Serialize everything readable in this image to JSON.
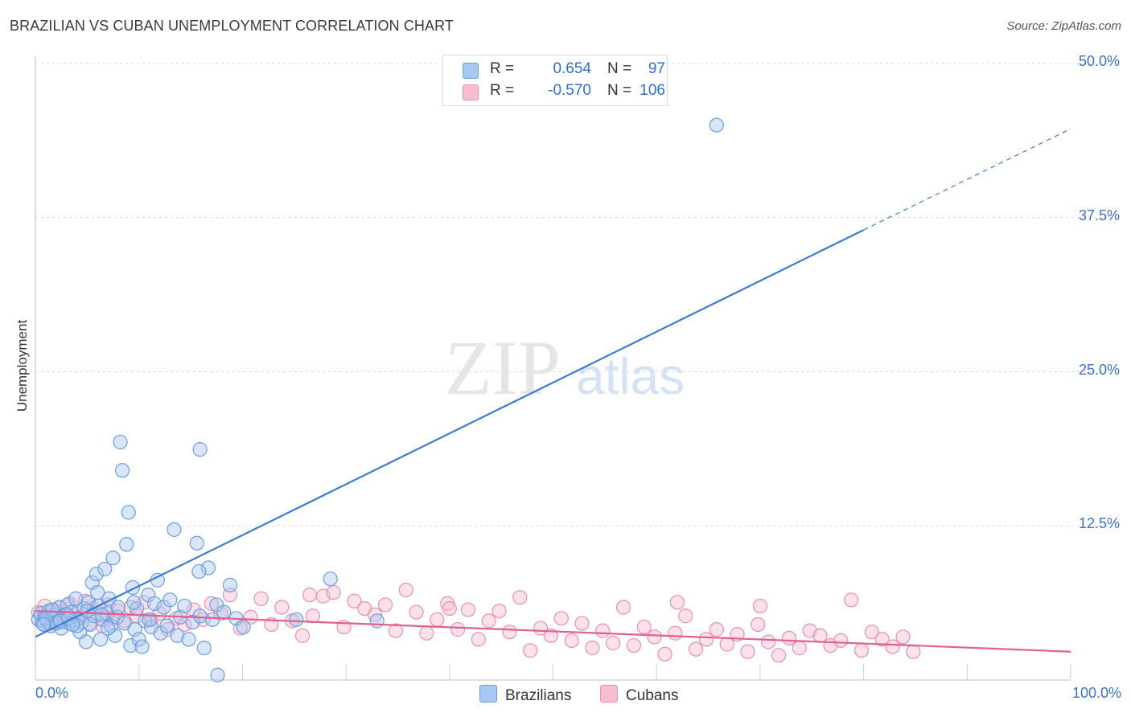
{
  "title": "BRAZILIAN VS CUBAN UNEMPLOYMENT CORRELATION CHART",
  "source": "Source: ZipAtlas.com",
  "watermark": {
    "zip": "ZIP",
    "atlas": "atlas"
  },
  "legend": {
    "rows": [
      {
        "r_label": "R =",
        "r_value": "0.654",
        "n_label": "N =",
        "n_value": "97",
        "color": "#a8c8f0",
        "border": "#6a9ee0"
      },
      {
        "r_label": "R =",
        "r_value": "-0.570",
        "n_label": "N =",
        "n_value": "106",
        "color": "#f8bdd0",
        "border": "#e890ae"
      }
    ]
  },
  "bottom_legend": [
    {
      "label": "Brazilians",
      "color": "#a8c8f0",
      "border": "#6a9ee0"
    },
    {
      "label": "Cubans",
      "color": "#f8bdd0",
      "border": "#e890ae"
    }
  ],
  "chart_data": {
    "type": "scatter",
    "title": "BRAZILIAN VS CUBAN UNEMPLOYMENT CORRELATION CHART",
    "xlabel": "",
    "ylabel": "Unemployment",
    "xlim": [
      0,
      100
    ],
    "ylim": [
      0,
      52
    ],
    "y_ticks": [
      {
        "value": 12.5,
        "label": "12.5%"
      },
      {
        "value": 25,
        "label": "25.0%"
      },
      {
        "value": 37.5,
        "label": "37.5%"
      },
      {
        "value": 50,
        "label": "50.0%"
      }
    ],
    "x_tick_labels": [
      {
        "value": 0,
        "label": "0.0%"
      },
      {
        "value": 100,
        "label": "100.0%"
      }
    ],
    "series": [
      {
        "name": "Brazilians",
        "color": "#3a7bd5",
        "fill": "rgba(168,200,240,0.45)",
        "stroke": "#6a9ee0",
        "R": 0.654,
        "N": 97,
        "trend": {
          "x0": 0,
          "y0": 3.5,
          "x1": 80,
          "y1": 36.5,
          "dash_x1": 100,
          "dash_y1": 44.7
        },
        "points": [
          [
            0.3,
            4.9
          ],
          [
            0.5,
            5.4
          ],
          [
            0.7,
            4.6
          ],
          [
            0.9,
            5.1
          ],
          [
            1.1,
            4.8
          ],
          [
            1.3,
            5.6
          ],
          [
            1.5,
            4.4
          ],
          [
            1.7,
            5.0
          ],
          [
            1.9,
            5.3
          ],
          [
            2.1,
            4.7
          ],
          [
            2.3,
            5.9
          ],
          [
            2.5,
            4.2
          ],
          [
            2.7,
            5.2
          ],
          [
            2.9,
            4.9
          ],
          [
            3.1,
            6.1
          ],
          [
            3.3,
            4.6
          ],
          [
            3.5,
            5.5
          ],
          [
            3.7,
            4.8
          ],
          [
            3.9,
            6.6
          ],
          [
            4.1,
            5.0
          ],
          [
            4.3,
            3.9
          ],
          [
            4.5,
            4.7
          ],
          [
            4.7,
            5.8
          ],
          [
            4.9,
            3.1
          ],
          [
            5.1,
            6.3
          ],
          [
            5.3,
            4.5
          ],
          [
            5.5,
            7.9
          ],
          [
            5.7,
            5.2
          ],
          [
            5.9,
            8.6
          ],
          [
            6.1,
            6.0
          ],
          [
            6.3,
            3.3
          ],
          [
            6.5,
            4.9
          ],
          [
            6.7,
            9.0
          ],
          [
            6.9,
            5.4
          ],
          [
            7.1,
            6.6
          ],
          [
            7.3,
            4.4
          ],
          [
            7.5,
            9.9
          ],
          [
            7.7,
            3.6
          ],
          [
            7.9,
            5.1
          ],
          [
            8.2,
            19.3
          ],
          [
            8.4,
            17.0
          ],
          [
            8.6,
            4.6
          ],
          [
            8.8,
            11.0
          ],
          [
            9.0,
            13.6
          ],
          [
            9.2,
            2.8
          ],
          [
            9.4,
            7.5
          ],
          [
            9.6,
            4.1
          ],
          [
            9.8,
            5.8
          ],
          [
            10.0,
            3.3
          ],
          [
            10.3,
            2.7
          ],
          [
            10.6,
            4.8
          ],
          [
            10.9,
            6.9
          ],
          [
            11.2,
            4.3
          ],
          [
            11.5,
            6.2
          ],
          [
            11.8,
            8.1
          ],
          [
            12.1,
            3.8
          ],
          [
            12.4,
            5.9
          ],
          [
            12.7,
            4.4
          ],
          [
            13.0,
            6.5
          ],
          [
            13.4,
            12.2
          ],
          [
            13.7,
            3.6
          ],
          [
            14.0,
            5.1
          ],
          [
            14.4,
            6.0
          ],
          [
            14.8,
            3.3
          ],
          [
            15.2,
            4.7
          ],
          [
            15.6,
            11.1
          ],
          [
            15.9,
            5.2
          ],
          [
            16.3,
            2.6
          ],
          [
            16.7,
            9.1
          ],
          [
            17.1,
            4.9
          ],
          [
            17.5,
            6.1
          ],
          [
            18.2,
            5.5
          ],
          [
            18.8,
            7.7
          ],
          [
            19.4,
            5.0
          ],
          [
            20.1,
            4.3
          ],
          [
            15.8,
            8.8
          ],
          [
            11.0,
            4.9
          ],
          [
            9.5,
            6.3
          ],
          [
            7.0,
            4.2
          ],
          [
            6.0,
            7.1
          ],
          [
            5.0,
            5.6
          ],
          [
            4.0,
            4.4
          ],
          [
            3.0,
            5.3
          ],
          [
            2.0,
            4.6
          ],
          [
            1.0,
            5.0
          ],
          [
            0.8,
            4.5
          ],
          [
            1.6,
            5.7
          ],
          [
            2.4,
            4.8
          ],
          [
            3.2,
            5.0
          ],
          [
            3.6,
            4.5
          ],
          [
            6.4,
            5.3
          ],
          [
            8.0,
            5.9
          ],
          [
            25.2,
            4.9
          ],
          [
            28.5,
            8.2
          ],
          [
            33.0,
            4.8
          ],
          [
            65.8,
            45.0
          ],
          [
            17.6,
            0.4
          ],
          [
            15.9,
            18.7
          ]
        ]
      },
      {
        "name": "Cubans",
        "color": "#e0608f",
        "fill": "rgba(248,189,208,0.45)",
        "stroke": "#e890ae",
        "R": -0.57,
        "N": 106,
        "trend": {
          "x0": 0,
          "y0": 5.6,
          "x1": 100,
          "y1": 2.3
        },
        "points": [
          [
            0.3,
            5.5
          ],
          [
            0.6,
            4.8
          ],
          [
            0.9,
            6.0
          ],
          [
            1.2,
            5.2
          ],
          [
            1.5,
            4.6
          ],
          [
            1.8,
            5.7
          ],
          [
            2.1,
            5.0
          ],
          [
            2.4,
            5.9
          ],
          [
            2.7,
            4.7
          ],
          [
            3.0,
            5.4
          ],
          [
            3.3,
            6.2
          ],
          [
            3.6,
            4.9
          ],
          [
            4.0,
            5.5
          ],
          [
            4.4,
            5.1
          ],
          [
            4.8,
            6.4
          ],
          [
            5.2,
            4.6
          ],
          [
            5.6,
            5.8
          ],
          [
            6.0,
            5.3
          ],
          [
            6.5,
            4.4
          ],
          [
            7.0,
            6.1
          ],
          [
            7.5,
            5.0
          ],
          [
            8.0,
            5.6
          ],
          [
            8.6,
            4.8
          ],
          [
            9.2,
            5.9
          ],
          [
            9.8,
            5.2
          ],
          [
            10.5,
            6.3
          ],
          [
            11.2,
            4.9
          ],
          [
            12.0,
            5.4
          ],
          [
            12.8,
            4.1
          ],
          [
            13.6,
            5.0
          ],
          [
            14.4,
            4.5
          ],
          [
            15.3,
            5.7
          ],
          [
            16.2,
            4.9
          ],
          [
            17.0,
            6.2
          ],
          [
            17.9,
            5.4
          ],
          [
            18.8,
            6.9
          ],
          [
            19.8,
            4.2
          ],
          [
            20.8,
            5.1
          ],
          [
            21.8,
            6.6
          ],
          [
            22.8,
            4.5
          ],
          [
            23.8,
            5.9
          ],
          [
            24.8,
            4.8
          ],
          [
            25.8,
            3.6
          ],
          [
            26.8,
            5.2
          ],
          [
            27.8,
            6.8
          ],
          [
            28.8,
            7.1
          ],
          [
            29.8,
            4.3
          ],
          [
            30.8,
            6.4
          ],
          [
            31.8,
            5.8
          ],
          [
            32.8,
            5.3
          ],
          [
            33.8,
            6.1
          ],
          [
            34.8,
            4.0
          ],
          [
            35.8,
            7.3
          ],
          [
            36.8,
            5.5
          ],
          [
            37.8,
            3.8
          ],
          [
            38.8,
            4.9
          ],
          [
            39.8,
            6.2
          ],
          [
            40.8,
            4.1
          ],
          [
            41.8,
            5.7
          ],
          [
            42.8,
            3.3
          ],
          [
            43.8,
            4.8
          ],
          [
            44.8,
            5.6
          ],
          [
            45.8,
            3.9
          ],
          [
            46.8,
            6.7
          ],
          [
            47.8,
            2.4
          ],
          [
            48.8,
            4.2
          ],
          [
            49.8,
            3.6
          ],
          [
            50.8,
            5.0
          ],
          [
            51.8,
            3.2
          ],
          [
            52.8,
            4.6
          ],
          [
            53.8,
            2.6
          ],
          [
            54.8,
            4.0
          ],
          [
            55.8,
            3.0
          ],
          [
            56.8,
            5.9
          ],
          [
            57.8,
            2.8
          ],
          [
            58.8,
            4.3
          ],
          [
            59.8,
            3.5
          ],
          [
            60.8,
            2.1
          ],
          [
            61.8,
            3.8
          ],
          [
            62.8,
            5.2
          ],
          [
            63.8,
            2.5
          ],
          [
            64.8,
            3.3
          ],
          [
            65.8,
            4.1
          ],
          [
            66.8,
            2.9
          ],
          [
            67.8,
            3.7
          ],
          [
            68.8,
            2.3
          ],
          [
            69.8,
            4.5
          ],
          [
            70.8,
            3.1
          ],
          [
            71.8,
            2.0
          ],
          [
            72.8,
            3.4
          ],
          [
            73.8,
            2.6
          ],
          [
            74.8,
            4.0
          ],
          [
            75.8,
            3.6
          ],
          [
            76.8,
            2.8
          ],
          [
            77.8,
            3.2
          ],
          [
            78.8,
            6.5
          ],
          [
            79.8,
            2.4
          ],
          [
            80.8,
            3.9
          ],
          [
            81.8,
            3.3
          ],
          [
            82.8,
            2.7
          ],
          [
            83.8,
            3.5
          ],
          [
            84.8,
            2.3
          ],
          [
            62.0,
            6.3
          ],
          [
            26.5,
            6.9
          ],
          [
            40.0,
            5.8
          ],
          [
            70.0,
            6.0
          ]
        ]
      }
    ]
  }
}
